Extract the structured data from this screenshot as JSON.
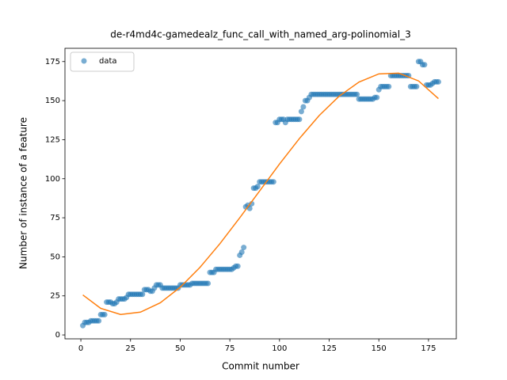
{
  "chart_data": {
    "type": "scatter",
    "title": "de-r4md4c-gamedealz_func_call_with_named_arg-polinomial_3",
    "x_label": "Commit number",
    "y_label": "Number of instance of a feature",
    "xlim": [
      -8,
      189
    ],
    "ylim": [
      -2.5,
      183.5
    ],
    "xticks": [
      0,
      25,
      50,
      75,
      100,
      125,
      150,
      175
    ],
    "yticks": [
      0,
      25,
      50,
      75,
      100,
      125,
      150,
      175
    ],
    "grid": false,
    "legend_position": "upper-left",
    "series": [
      {
        "name": "data",
        "color": "#1f77b4",
        "mode": "markers",
        "x": [
          1,
          2,
          3,
          4,
          5,
          6,
          7,
          8,
          9,
          10,
          11,
          12,
          13,
          14,
          15,
          16,
          17,
          18,
          19,
          20,
          21,
          22,
          23,
          24,
          25,
          26,
          27,
          28,
          29,
          30,
          31,
          32,
          33,
          34,
          35,
          36,
          37,
          38,
          39,
          40,
          41,
          42,
          43,
          44,
          45,
          46,
          47,
          48,
          49,
          50,
          51,
          52,
          53,
          54,
          55,
          56,
          57,
          58,
          59,
          60,
          61,
          62,
          63,
          64,
          65,
          66,
          67,
          68,
          69,
          70,
          71,
          72,
          73,
          74,
          75,
          76,
          77,
          78,
          79,
          80,
          81,
          82,
          83,
          84,
          85,
          86,
          87,
          88,
          89,
          90,
          91,
          92,
          93,
          94,
          95,
          96,
          97,
          98,
          99,
          100,
          101,
          102,
          103,
          104,
          105,
          106,
          107,
          108,
          109,
          110,
          111,
          112,
          113,
          114,
          115,
          116,
          117,
          118,
          119,
          120,
          121,
          122,
          123,
          124,
          125,
          126,
          127,
          128,
          129,
          130,
          131,
          132,
          133,
          134,
          135,
          136,
          137,
          138,
          139,
          140,
          141,
          142,
          143,
          144,
          145,
          146,
          147,
          148,
          149,
          150,
          151,
          152,
          153,
          154,
          155,
          156,
          157,
          158,
          159,
          160,
          161,
          162,
          163,
          164,
          165,
          166,
          167,
          168,
          169,
          170,
          171,
          172,
          173,
          174,
          175,
          176,
          177,
          178,
          179,
          180
        ],
        "values": [
          6,
          8,
          8,
          8,
          9,
          9,
          9,
          9,
          9,
          13,
          13,
          13,
          21,
          21,
          21,
          20,
          20,
          21,
          23,
          23,
          23,
          23,
          24,
          26,
          26,
          26,
          26,
          26,
          26,
          26,
          26,
          29,
          29,
          29,
          28,
          28,
          30,
          32,
          32,
          32,
          30,
          30,
          30,
          30,
          30,
          30,
          30,
          30,
          30,
          32,
          32,
          32,
          32,
          32,
          32,
          33,
          33,
          33,
          33,
          33,
          33,
          33,
          33,
          33,
          40,
          40,
          40,
          42,
          42,
          42,
          42,
          42,
          42,
          42,
          42,
          42,
          43,
          44,
          44,
          51,
          53,
          56,
          82,
          83,
          81,
          84,
          94,
          94,
          95,
          98,
          98,
          98,
          98,
          98,
          98,
          98,
          98,
          136,
          136,
          138,
          138,
          138,
          136,
          138,
          138,
          138,
          138,
          138,
          138,
          138,
          143,
          146,
          150,
          150,
          152,
          154,
          154,
          154,
          154,
          154,
          154,
          154,
          154,
          154,
          154,
          154,
          154,
          154,
          154,
          154,
          154,
          154,
          154,
          154,
          154,
          154,
          154,
          154,
          154,
          151,
          151,
          151,
          151,
          151,
          151,
          151,
          151,
          152,
          152,
          157,
          159,
          159,
          159,
          159,
          159,
          166,
          166,
          166,
          166,
          166,
          166,
          166,
          166,
          166,
          166,
          159,
          159,
          159,
          159,
          175,
          175,
          173,
          173,
          160,
          160,
          160,
          161,
          162,
          162,
          162
        ]
      },
      {
        "color": "#ff7f0e",
        "mode": "line",
        "x": [
          1,
          10,
          20,
          30,
          40,
          50,
          60,
          70,
          80,
          90,
          100,
          110,
          120,
          130,
          140,
          150,
          160,
          170,
          180
        ],
        "values": [
          25.6,
          17.0,
          13.1,
          14.6,
          20.6,
          30.5,
          43.3,
          58.4,
          75.0,
          92.2,
          109.4,
          125.7,
          140.5,
          152.8,
          161.9,
          167.1,
          167.6,
          162.6,
          151.3
        ]
      }
    ]
  }
}
